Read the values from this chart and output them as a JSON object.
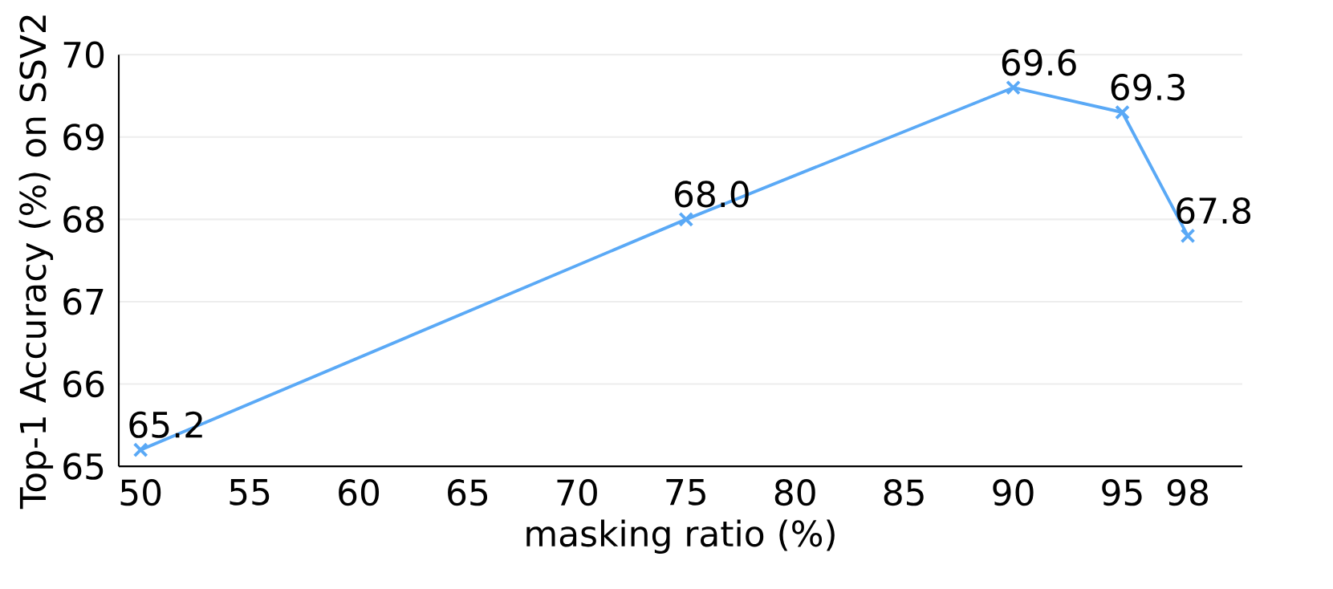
{
  "chart_data": {
    "type": "line",
    "xlabel": "masking ratio (%)",
    "ylabel": "Top-1 Accuracy (%) on SSV2",
    "x": [
      50,
      75,
      90,
      95,
      98
    ],
    "values": [
      65.2,
      68.0,
      69.6,
      69.3,
      67.8
    ],
    "value_labels": [
      "65.2",
      "68.0",
      "69.6",
      "69.3",
      "67.8"
    ],
    "color": "#5aa9f6",
    "marker": "cross",
    "line_style": "solid",
    "grid": "y",
    "legend": false,
    "xlim": [
      49,
      100.5
    ],
    "ylim": [
      65,
      70
    ],
    "xticks": [
      50,
      55,
      60,
      65,
      70,
      75,
      80,
      85,
      90,
      95,
      98
    ],
    "yticks": [
      65,
      66,
      67,
      68,
      69,
      70
    ]
  }
}
